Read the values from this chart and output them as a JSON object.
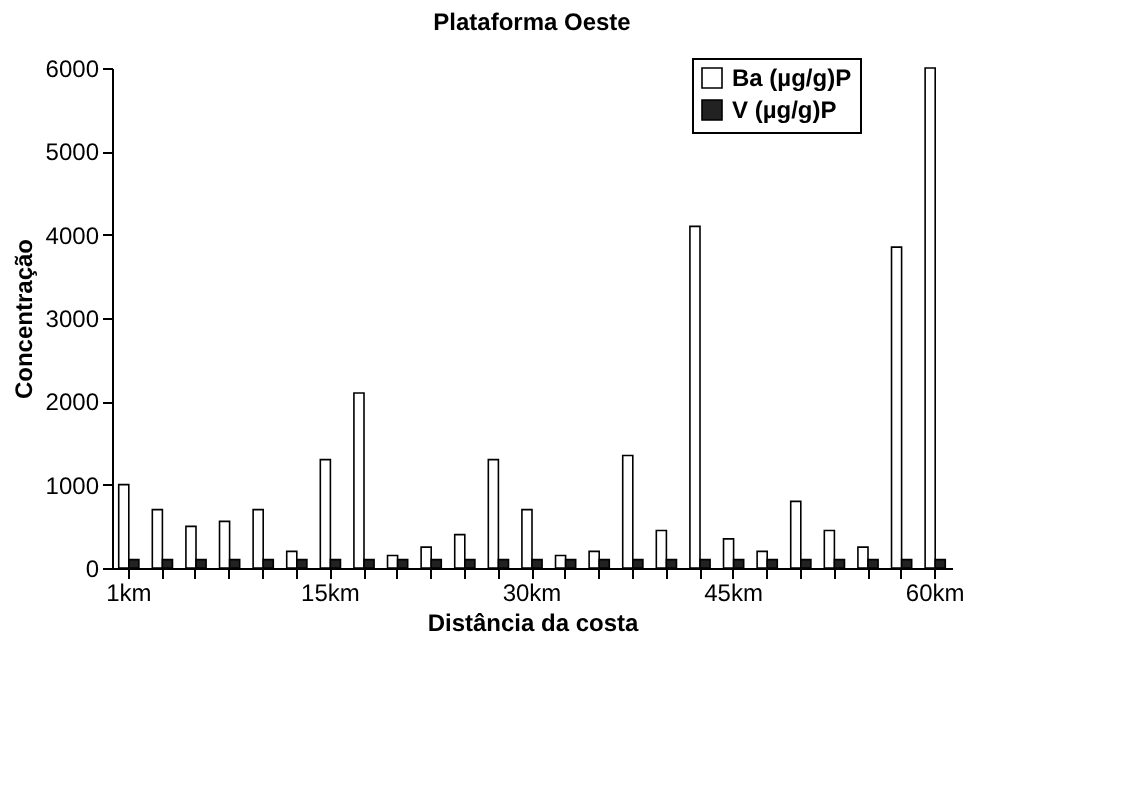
{
  "chart_data": {
    "type": "bar",
    "title": "Plataforma Oeste",
    "xlabel": "Distância da costa",
    "ylabel": "Concentração",
    "categories": [
      "1km",
      null,
      null,
      null,
      null,
      null,
      "15km",
      null,
      null,
      null,
      null,
      null,
      "30km",
      null,
      null,
      null,
      null,
      null,
      "45km",
      null,
      null,
      null,
      null,
      null,
      "60km"
    ],
    "series": [
      {
        "name": "Ba (µg/g)P",
        "color": "#ffffff",
        "values": [
          1000,
          700,
          500,
          560,
          700,
          200,
          1300,
          2100,
          150,
          250,
          400,
          1300,
          700,
          150,
          200,
          1350,
          450,
          4100,
          350,
          200,
          800,
          450,
          250,
          3850,
          6000
        ]
      },
      {
        "name": "V (µg/g)P",
        "color": "#222222",
        "values": [
          100,
          100,
          100,
          100,
          100,
          100,
          100,
          100,
          100,
          100,
          100,
          100,
          100,
          100,
          100,
          100,
          100,
          100,
          100,
          100,
          100,
          100,
          100,
          100,
          100
        ]
      }
    ],
    "ylim": [
      0,
      6000
    ],
    "yticks": [
      0,
      1000,
      2000,
      3000,
      4000,
      5000,
      6000
    ],
    "grid": false,
    "legend": "top right"
  }
}
